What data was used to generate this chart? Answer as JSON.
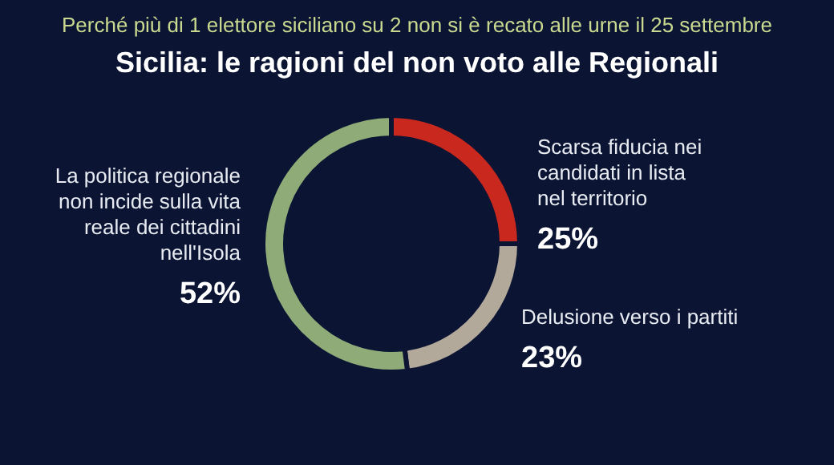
{
  "chart_data": {
    "type": "donut",
    "subtitle": "Perché più di 1 elettore siciliano su 2 non si è recato alle urne il 25 settembre",
    "title": "Sicilia: le ragioni del non voto alle Regionali",
    "categories": [
      "Scarsa fiducia nei candidati in lista nel territorio",
      "Delusione verso i partiti",
      "La politica regionale non incide sulla vita reale dei cittadini nell'Isola"
    ],
    "values": [
      25,
      23,
      52
    ],
    "colors": [
      "#c8281e",
      "#b3a99b",
      "#8fac78"
    ],
    "value_labels": [
      "25%",
      "23%",
      "52%"
    ]
  }
}
